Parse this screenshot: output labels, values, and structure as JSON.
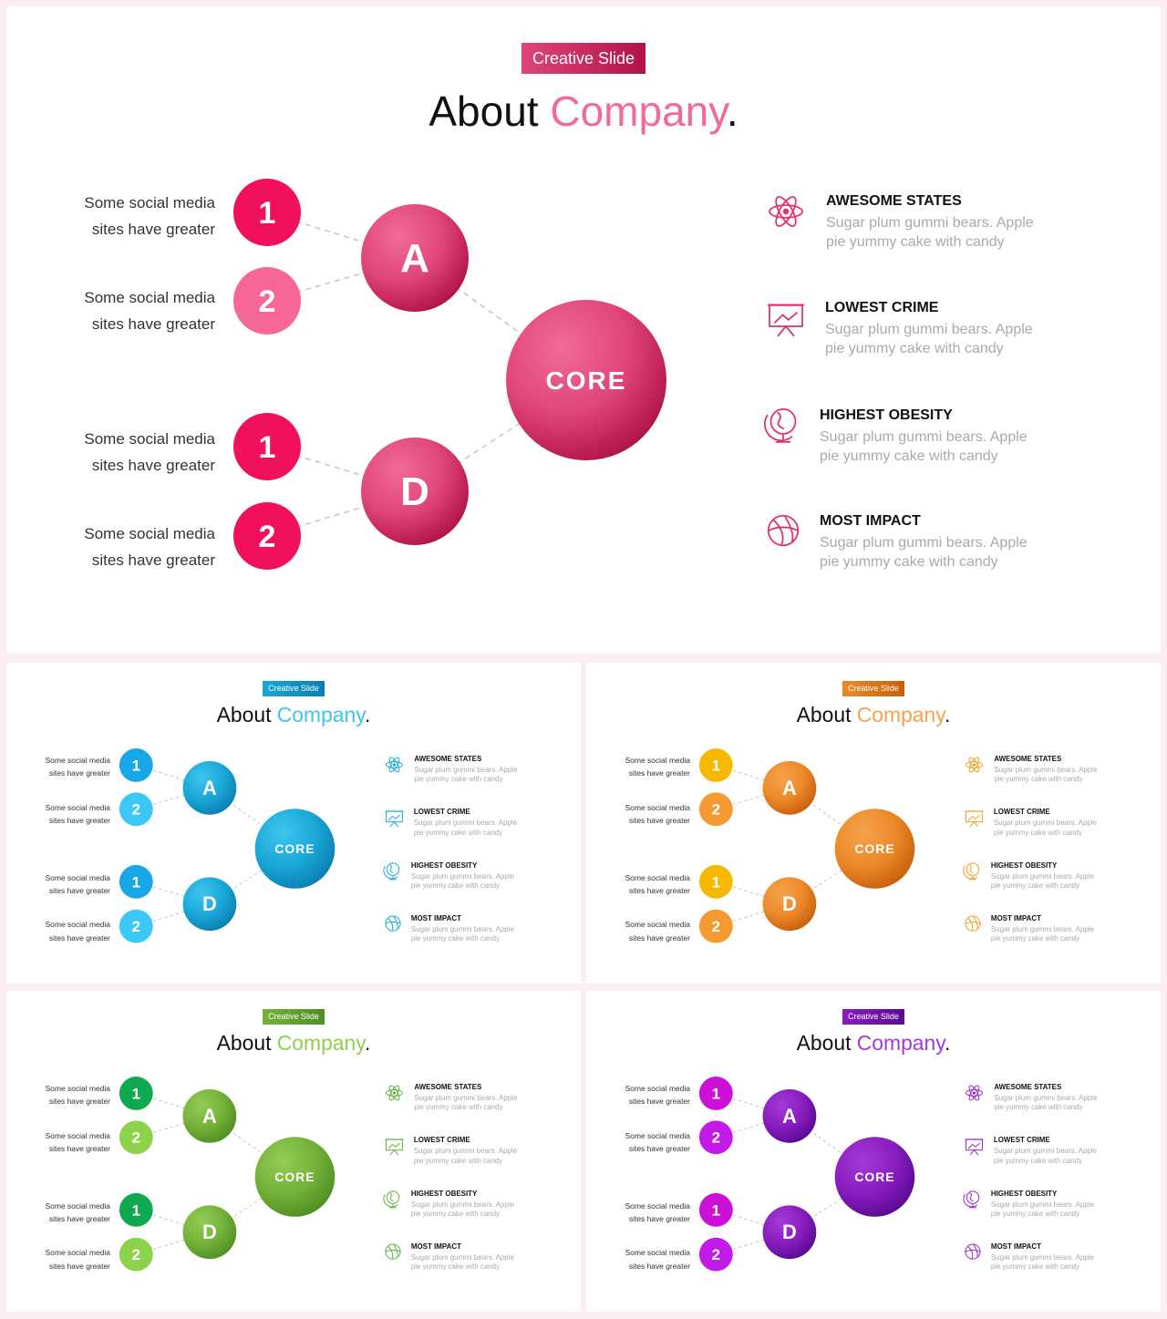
{
  "slides": [
    {
      "theme": "pink",
      "colors": {
        "dark": "#b0124a",
        "mid": "#e0457a",
        "light": "#f06b9a",
        "n1": "#f0105e",
        "n2": "#f56896",
        "tag": "#e0457a",
        "icon": "#e0306e"
      },
      "tag": "Creative Slide",
      "title_main": "About",
      "title_accent": "Company",
      "title_dot": ".",
      "hub_a": "A",
      "hub_d": "D",
      "core": "CORE",
      "nodes": [
        "1",
        "2",
        "1",
        "2"
      ],
      "labels": [
        {
          "line1": "Some social media",
          "line2": "sites have greater"
        },
        {
          "line1": "Some social media",
          "line2": "sites have greater"
        },
        {
          "line1": "Some social media",
          "line2": "sites have greater"
        },
        {
          "line1": "Some social media",
          "line2": "sites have greater"
        }
      ],
      "features": [
        {
          "icon": "atom-icon",
          "title": "AWESOME STATES",
          "desc": "Sugar plum gummi bears. Apple pie yummy cake with candy"
        },
        {
          "icon": "presentation-board-icon",
          "title": "LOWEST CRIME",
          "desc": "Sugar plum gummi bears. Apple pie yummy cake with candy"
        },
        {
          "icon": "globe-icon",
          "title": "HIGHEST OBESITY",
          "desc": "Sugar plum gummi bears. Apple pie yummy cake with candy"
        },
        {
          "icon": "globe-network-icon",
          "title": "MOST IMPACT",
          "desc": "Sugar plum gummi bears. Apple pie yummy cake with candy"
        }
      ]
    },
    {
      "theme": "blue",
      "colors": {
        "dark": "#0a7fb0",
        "mid": "#1aa8d8",
        "light": "#3fc5ee",
        "n1": "#19a6e6",
        "n2": "#3cc8f5",
        "tag": "#18a9d6",
        "icon": "#18a9d6"
      },
      "tag": "Creative Slide",
      "title_main": "About",
      "title_accent": "Company",
      "title_dot": ".",
      "hub_a": "A",
      "hub_d": "D",
      "core": "CORE",
      "nodes": [
        "1",
        "2",
        "1",
        "2"
      ],
      "labels": [
        {
          "line1": "Some social media",
          "line2": "sites have greater"
        },
        {
          "line1": "Some social media",
          "line2": "sites have greater"
        },
        {
          "line1": "Some social media",
          "line2": "sites have greater"
        },
        {
          "line1": "Some social media",
          "line2": "sites have greater"
        }
      ],
      "features": [
        {
          "icon": "atom-icon",
          "title": "AWESOME STATES",
          "desc": "Sugar plum gummi bears. Apple pie yummy cake with candy"
        },
        {
          "icon": "presentation-board-icon",
          "title": "LOWEST CRIME",
          "desc": "Sugar plum gummi bears. Apple pie yummy cake with candy"
        },
        {
          "icon": "globe-icon",
          "title": "HIGHEST OBESITY",
          "desc": "Sugar plum gummi bears. Apple pie yummy cake with candy"
        },
        {
          "icon": "globe-network-icon",
          "title": "MOST IMPACT",
          "desc": "Sugar plum gummi bears. Apple pie yummy cake with candy"
        }
      ]
    },
    {
      "theme": "orange",
      "colors": {
        "dark": "#c8600a",
        "mid": "#ec8a2a",
        "light": "#f6a24a",
        "n1": "#f7b800",
        "n2": "#f59a30",
        "tag": "#e07b1a",
        "icon": "#f0a020"
      },
      "tag": "Creative Slide",
      "title_main": "About",
      "title_accent": "Company",
      "title_dot": ".",
      "hub_a": "A",
      "hub_d": "D",
      "core": "CORE",
      "nodes": [
        "1",
        "2",
        "1",
        "2"
      ],
      "labels": [
        {
          "line1": "Some social media",
          "line2": "sites have greater"
        },
        {
          "line1": "Some social media",
          "line2": "sites have greater"
        },
        {
          "line1": "Some social media",
          "line2": "sites have greater"
        },
        {
          "line1": "Some social media",
          "line2": "sites have greater"
        }
      ],
      "features": [
        {
          "icon": "atom-icon",
          "title": "AWESOME STATES",
          "desc": "Sugar plum gummi bears. Apple pie yummy cake with candy"
        },
        {
          "icon": "presentation-board-icon",
          "title": "LOWEST CRIME",
          "desc": "Sugar plum gummi bears. Apple pie yummy cake with candy"
        },
        {
          "icon": "globe-icon",
          "title": "HIGHEST OBESITY",
          "desc": "Sugar plum gummi bears. Apple pie yummy cake with candy"
        },
        {
          "icon": "globe-network-icon",
          "title": "MOST IMPACT",
          "desc": "Sugar plum gummi bears. Apple pie yummy cake with candy"
        }
      ]
    },
    {
      "theme": "green",
      "colors": {
        "dark": "#4f8f23",
        "mid": "#74b23a",
        "light": "#93cd55",
        "n1": "#10a850",
        "n2": "#8cd24a",
        "tag": "#6aaa32",
        "icon": "#60b040"
      },
      "tag": "Creative Slide",
      "title_main": "About",
      "title_accent": "Company",
      "title_dot": ".",
      "hub_a": "A",
      "hub_d": "D",
      "core": "CORE",
      "nodes": [
        "1",
        "2",
        "1",
        "2"
      ],
      "labels": [
        {
          "line1": "Some social media",
          "line2": "sites have greater"
        },
        {
          "line1": "Some social media",
          "line2": "sites have greater"
        },
        {
          "line1": "Some social media",
          "line2": "sites have greater"
        },
        {
          "line1": "Some social media",
          "line2": "sites have greater"
        }
      ],
      "features": [
        {
          "icon": "atom-icon",
          "title": "AWESOME STATES",
          "desc": "Sugar plum gummi bears. Apple pie yummy cake with candy"
        },
        {
          "icon": "presentation-board-icon",
          "title": "LOWEST CRIME",
          "desc": "Sugar plum gummi bears. Apple pie yummy cake with candy"
        },
        {
          "icon": "globe-icon",
          "title": "HIGHEST OBESITY",
          "desc": "Sugar plum gummi bears. Apple pie yummy cake with candy"
        },
        {
          "icon": "globe-network-icon",
          "title": "MOST IMPACT",
          "desc": "Sugar plum gummi bears. Apple pie yummy cake with candy"
        }
      ]
    },
    {
      "theme": "purple",
      "colors": {
        "dark": "#5a0a92",
        "mid": "#8a1cc0",
        "light": "#a53ad6",
        "n1": "#cc10d8",
        "n2": "#c41ae8",
        "tag": "#8a1cc0",
        "icon": "#9a28c8"
      },
      "tag": "Creative Slide",
      "title_main": "About",
      "title_accent": "Company",
      "title_dot": ".",
      "hub_a": "A",
      "hub_d": "D",
      "core": "CORE",
      "nodes": [
        "1",
        "2",
        "1",
        "2"
      ],
      "labels": [
        {
          "line1": "Some social media",
          "line2": "sites have greater"
        },
        {
          "line1": "Some social media",
          "line2": "sites have greater"
        },
        {
          "line1": "Some social media",
          "line2": "sites have greater"
        },
        {
          "line1": "Some social media",
          "line2": "sites have greater"
        }
      ],
      "features": [
        {
          "icon": "atom-icon",
          "title": "AWESOME STATES",
          "desc": "Sugar plum gummi bears. Apple pie yummy cake with candy"
        },
        {
          "icon": "presentation-board-icon",
          "title": "LOWEST CRIME",
          "desc": "Sugar plum gummi bears. Apple pie yummy cake with candy"
        },
        {
          "icon": "globe-icon",
          "title": "HIGHEST OBESITY",
          "desc": "Sugar plum gummi bears. Apple pie yummy cake with candy"
        },
        {
          "icon": "globe-network-icon",
          "title": "MOST IMPACT",
          "desc": "Sugar plum gummi bears. Apple pie yummy cake with candy"
        }
      ]
    }
  ]
}
